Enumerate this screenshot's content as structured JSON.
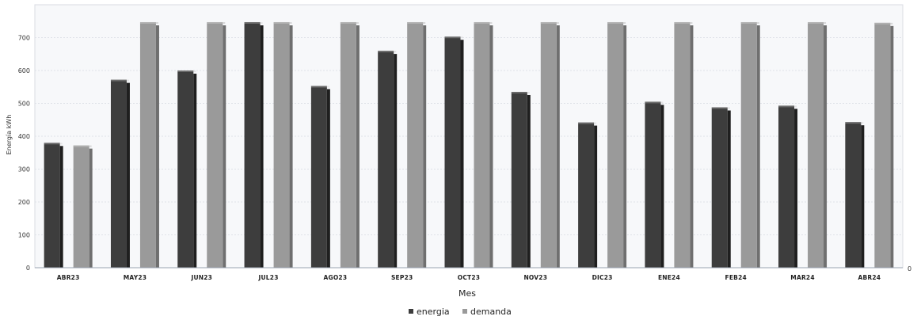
{
  "chart_data": {
    "type": "bar",
    "categories": [
      "ABR23",
      "MAY23",
      "JUN23",
      "JUL23",
      "AGO23",
      "SEP23",
      "OCT23",
      "NOV23",
      "DIC23",
      "ENE24",
      "FEB24",
      "MAR24",
      "ABR24"
    ],
    "series": [
      {
        "name": "energia",
        "color": "#3d3d3d",
        "values": [
          380,
          572,
          600,
          747,
          553,
          660,
          703,
          535,
          442,
          505,
          488,
          493,
          443
        ]
      },
      {
        "name": "demanda",
        "color": "#9a9a9a",
        "values": [
          372,
          747,
          747,
          747,
          747,
          747,
          747,
          747,
          747,
          747,
          747,
          747,
          745
        ]
      }
    ],
    "xlabel": "Mes",
    "ylabel": "Energía kWh",
    "ylim": [
      0,
      800
    ],
    "yticks": [
      0,
      100,
      200,
      300,
      400,
      500,
      600,
      700
    ],
    "right_axis_tick": "0",
    "grid": true,
    "legend_position": "bottom"
  }
}
